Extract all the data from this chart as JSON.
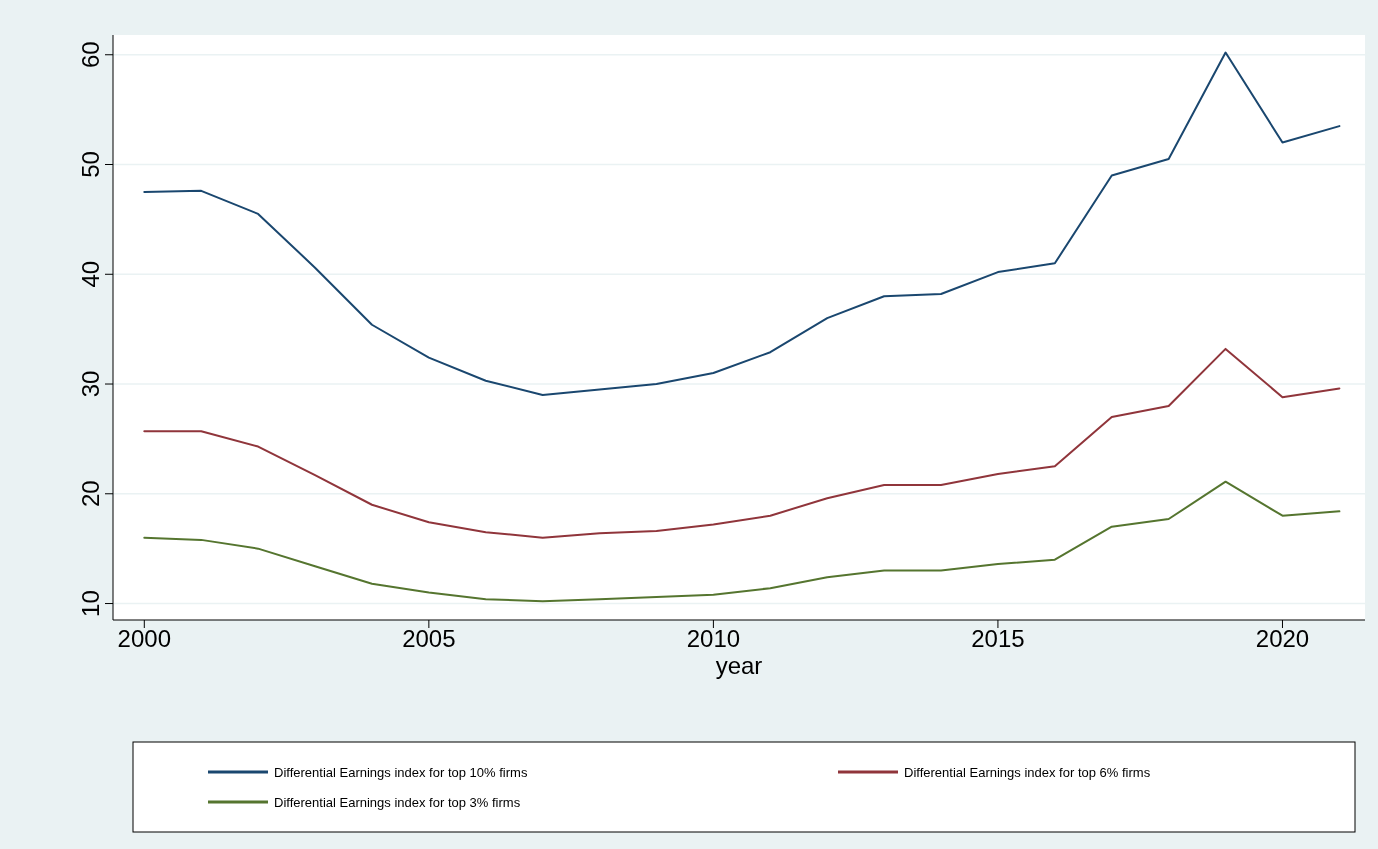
{
  "chart_data": {
    "type": "line",
    "xlabel": "year",
    "x": [
      2000,
      2001,
      2002,
      2003,
      2004,
      2005,
      2006,
      2007,
      2008,
      2009,
      2010,
      2011,
      2012,
      2013,
      2014,
      2015,
      2016,
      2017,
      2018,
      2019,
      2020,
      2021
    ],
    "xlim": [
      1999.45,
      2021.45
    ],
    "xticks": [
      2000,
      2005,
      2010,
      2015,
      2020
    ],
    "ylim": [
      8.5,
      61.8
    ],
    "yticks": [
      10,
      20,
      30,
      40,
      50,
      60
    ],
    "grid": "y",
    "legend": "bottom",
    "series": [
      {
        "name": "Differential Earnings index for top 10% firms",
        "color": "#1a476f",
        "values": [
          47.5,
          47.6,
          45.5,
          40.6,
          35.4,
          32.4,
          30.3,
          29.0,
          29.5,
          30.0,
          31.0,
          32.9,
          36.0,
          38.0,
          38.2,
          40.2,
          41.0,
          49.0,
          50.5,
          60.2,
          52.0,
          53.5
        ]
      },
      {
        "name": "Differential Earnings index for top 6% firms",
        "color": "#90353b",
        "values": [
          25.7,
          25.7,
          24.3,
          21.7,
          19.0,
          17.4,
          16.5,
          16.0,
          16.4,
          16.6,
          17.2,
          18.0,
          19.6,
          20.8,
          20.8,
          21.8,
          22.5,
          27.0,
          28.0,
          33.2,
          28.8,
          29.6
        ]
      },
      {
        "name": "Differential Earnings index for top 3% firms",
        "color": "#55752f",
        "values": [
          16.0,
          15.8,
          15.0,
          13.4,
          11.8,
          11.0,
          10.4,
          10.2,
          10.4,
          10.6,
          10.8,
          11.4,
          12.4,
          13.0,
          13.0,
          13.6,
          14.0,
          17.0,
          17.7,
          21.1,
          18.0,
          18.4
        ]
      }
    ]
  }
}
